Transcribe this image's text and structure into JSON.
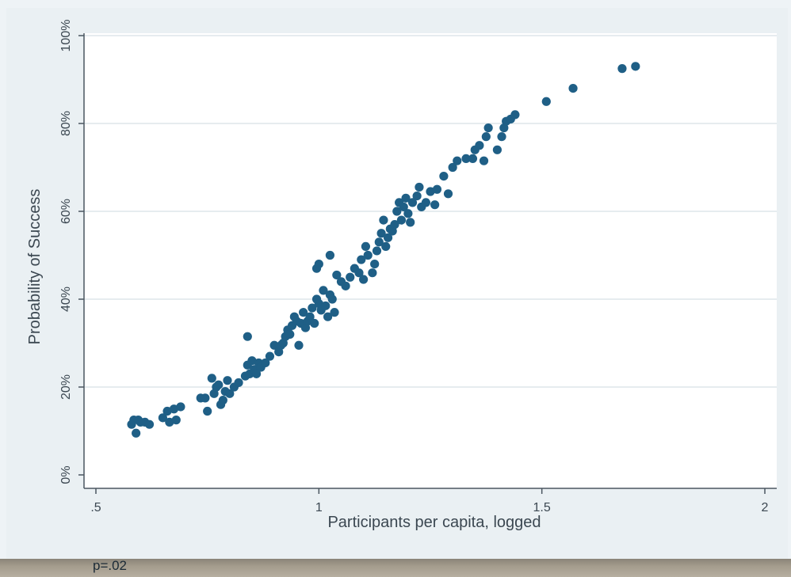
{
  "chart_data": {
    "type": "scatter",
    "title": "",
    "xlabel": "Participants per capita, logged",
    "ylabel": "Probability of Success",
    "xlim": [
      0.5,
      2.0
    ],
    "ylim": [
      0,
      100
    ],
    "x_ticks": [
      0.5,
      1,
      1.5,
      2
    ],
    "x_tick_labels": [
      ".5",
      "1",
      "1.5",
      "2"
    ],
    "y_ticks": [
      0,
      20,
      40,
      60,
      80,
      100
    ],
    "y_tick_labels": [
      "0%",
      "20%",
      "40%",
      "60%",
      "80%",
      "100%"
    ],
    "grid": "horizontal",
    "marker_color": "#1f5f86",
    "points": [
      [
        0.58,
        11.5
      ],
      [
        0.585,
        12.5
      ],
      [
        0.59,
        9.5
      ],
      [
        0.595,
        12.5
      ],
      [
        0.6,
        12
      ],
      [
        0.61,
        12
      ],
      [
        0.62,
        11.5
      ],
      [
        0.65,
        13
      ],
      [
        0.66,
        14.5
      ],
      [
        0.665,
        12
      ],
      [
        0.675,
        15
      ],
      [
        0.68,
        12.5
      ],
      [
        0.69,
        15.5
      ],
      [
        0.735,
        17.5
      ],
      [
        0.745,
        17.5
      ],
      [
        0.75,
        14.5
      ],
      [
        0.76,
        22
      ],
      [
        0.765,
        18.5
      ],
      [
        0.77,
        20
      ],
      [
        0.775,
        20.5
      ],
      [
        0.78,
        16
      ],
      [
        0.785,
        17
      ],
      [
        0.79,
        19
      ],
      [
        0.795,
        21.5
      ],
      [
        0.8,
        18.5
      ],
      [
        0.81,
        20
      ],
      [
        0.82,
        21
      ],
      [
        0.835,
        22.5
      ],
      [
        0.84,
        25
      ],
      [
        0.845,
        23
      ],
      [
        0.85,
        26
      ],
      [
        0.855,
        24
      ],
      [
        0.86,
        23
      ],
      [
        0.865,
        25.5
      ],
      [
        0.87,
        24.5
      ],
      [
        0.88,
        25.5
      ],
      [
        0.84,
        31.5
      ],
      [
        0.89,
        27
      ],
      [
        0.9,
        29.5
      ],
      [
        0.91,
        28
      ],
      [
        0.915,
        29.5
      ],
      [
        0.92,
        30
      ],
      [
        0.925,
        31.5
      ],
      [
        0.93,
        33
      ],
      [
        0.935,
        32
      ],
      [
        0.94,
        34
      ],
      [
        0.945,
        36
      ],
      [
        0.95,
        35
      ],
      [
        0.955,
        29.5
      ],
      [
        0.96,
        34.5
      ],
      [
        0.965,
        37
      ],
      [
        0.97,
        33.5
      ],
      [
        0.975,
        35
      ],
      [
        0.98,
        36
      ],
      [
        0.985,
        38
      ],
      [
        0.99,
        34.5
      ],
      [
        0.995,
        40
      ],
      [
        1.0,
        39
      ],
      [
        1.005,
        37.5
      ],
      [
        1.01,
        42
      ],
      [
        1.015,
        38.5
      ],
      [
        1.02,
        36
      ],
      [
        1.025,
        41
      ],
      [
        1.03,
        40
      ],
      [
        1.035,
        37
      ],
      [
        0.995,
        47
      ],
      [
        1.0,
        48
      ],
      [
        1.025,
        50
      ],
      [
        1.04,
        45.5
      ],
      [
        1.05,
        44
      ],
      [
        1.06,
        43
      ],
      [
        1.07,
        45
      ],
      [
        1.08,
        47
      ],
      [
        1.09,
        46
      ],
      [
        1.095,
        49
      ],
      [
        1.1,
        44.5
      ],
      [
        1.105,
        52
      ],
      [
        1.11,
        50
      ],
      [
        1.12,
        46
      ],
      [
        1.125,
        48
      ],
      [
        1.13,
        51
      ],
      [
        1.135,
        53
      ],
      [
        1.14,
        55
      ],
      [
        1.145,
        58
      ],
      [
        1.15,
        52
      ],
      [
        1.155,
        54
      ],
      [
        1.16,
        56
      ],
      [
        1.165,
        55.5
      ],
      [
        1.17,
        57
      ],
      [
        1.175,
        60
      ],
      [
        1.18,
        62
      ],
      [
        1.185,
        58
      ],
      [
        1.19,
        61
      ],
      [
        1.195,
        63
      ],
      [
        1.2,
        59.5
      ],
      [
        1.205,
        57.5
      ],
      [
        1.21,
        62
      ],
      [
        1.22,
        63.5
      ],
      [
        1.225,
        65.5
      ],
      [
        1.23,
        61
      ],
      [
        1.24,
        62
      ],
      [
        1.25,
        64.5
      ],
      [
        1.26,
        61.5
      ],
      [
        1.265,
        65
      ],
      [
        1.28,
        68
      ],
      [
        1.29,
        64
      ],
      [
        1.3,
        70
      ],
      [
        1.31,
        71.5
      ],
      [
        1.33,
        72
      ],
      [
        1.345,
        72
      ],
      [
        1.35,
        74
      ],
      [
        1.36,
        75
      ],
      [
        1.37,
        71.5
      ],
      [
        1.375,
        77
      ],
      [
        1.38,
        79
      ],
      [
        1.4,
        74
      ],
      [
        1.41,
        77
      ],
      [
        1.415,
        79
      ],
      [
        1.42,
        80.5
      ],
      [
        1.43,
        81
      ],
      [
        1.44,
        82
      ],
      [
        1.51,
        85
      ],
      [
        1.57,
        88
      ],
      [
        1.68,
        92.5
      ],
      [
        1.71,
        93
      ]
    ]
  },
  "footnote": "p=.02"
}
